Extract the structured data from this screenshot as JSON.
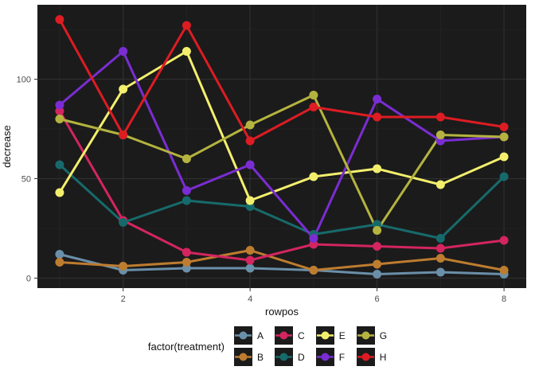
{
  "chart": {
    "colors": {
      "panel_bg": "#1b1b1b",
      "grid_major": "#2f2f2f",
      "grid_minor": "#252525",
      "tick_mark": "#333333",
      "tick_text": "#4d4d4d",
      "axis_title_text": "#111111"
    }
  },
  "legend": {
    "title": "factor(treatment)"
  },
  "chart_data": {
    "type": "line",
    "title": "",
    "xlabel": "rowpos",
    "ylabel": "decrease",
    "x": [
      1,
      2,
      3,
      4,
      5,
      6,
      7,
      8
    ],
    "xlim": [
      0.65,
      8.35
    ],
    "ylim": [
      -5,
      137.4
    ],
    "x_ticks": [
      2,
      4,
      6,
      8
    ],
    "y_ticks": [
      0,
      50,
      100
    ],
    "x_minor": [
      1,
      3,
      5,
      7
    ],
    "y_minor": [
      25,
      75,
      125
    ],
    "grid": true,
    "legend_position": "bottom",
    "series": [
      {
        "name": "A",
        "color": "#6a8fa9",
        "values": [
          12,
          4,
          5,
          5,
          4,
          2,
          3,
          2
        ]
      },
      {
        "name": "B",
        "color": "#bd7c2f",
        "values": [
          8,
          6,
          8,
          14,
          4,
          7,
          10,
          4
        ]
      },
      {
        "name": "C",
        "color": "#d32560",
        "values": [
          84,
          29,
          13,
          9,
          17,
          16,
          15,
          19
        ]
      },
      {
        "name": "D",
        "color": "#176a6b",
        "values": [
          57,
          28,
          39,
          36,
          22,
          27,
          20,
          51
        ]
      },
      {
        "name": "E",
        "color": "#f3ef6d",
        "values": [
          43,
          95,
          114,
          39,
          51,
          55,
          47,
          61
        ]
      },
      {
        "name": "F",
        "color": "#7a2dd2",
        "values": [
          87,
          114,
          44,
          57,
          20,
          90,
          69,
          71
        ]
      },
      {
        "name": "G",
        "color": "#b4b33f",
        "values": [
          80,
          72,
          60,
          77,
          92,
          24,
          72,
          71
        ]
      },
      {
        "name": "H",
        "color": "#dd1c23",
        "values": [
          130,
          72,
          127,
          69,
          86,
          81,
          81,
          76
        ]
      }
    ]
  }
}
